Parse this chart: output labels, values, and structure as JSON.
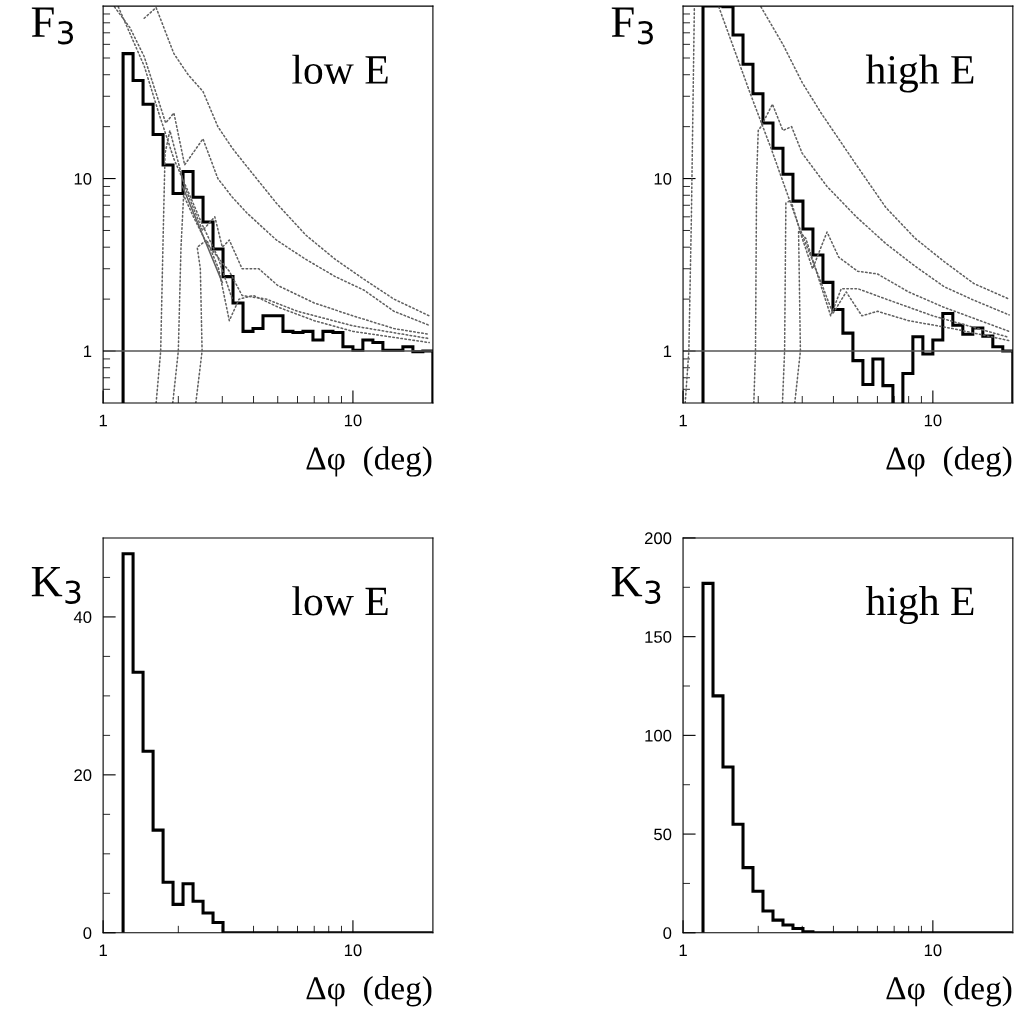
{
  "chart_data": [
    {
      "type": "histogram",
      "log": "xy",
      "color": "#000000",
      "ylabel": "F$_{3}$",
      "xlabel": "Δφ  (deg)",
      "annotations": [
        "low E"
      ],
      "xlim": [
        1,
        20.9
      ],
      "ylim": [
        0.5,
        100
      ],
      "xticks": [
        1,
        {
          "value": 2,
          "label": null
        },
        {
          "value": 3,
          "label": null
        },
        {
          "value": 4,
          "label": null
        },
        {
          "value": 5,
          "label": null
        },
        {
          "value": 6,
          "label": null
        },
        {
          "value": 7,
          "label": null
        },
        {
          "value": 8,
          "label": null
        },
        {
          "value": 9,
          "label": null
        },
        10
      ],
      "yticks": [
        {
          "value": 0.6,
          "label": null
        },
        {
          "value": 0.7,
          "label": null
        },
        {
          "value": 0.8,
          "label": null
        },
        {
          "value": 0.9,
          "label": null
        },
        1,
        {
          "value": 2,
          "label": null
        },
        {
          "value": 3,
          "label": null
        },
        {
          "value": 4,
          "label": null
        },
        {
          "value": 5,
          "label": null
        },
        {
          "value": 6,
          "label": null
        },
        {
          "value": 7,
          "label": null
        },
        {
          "value": 8,
          "label": null
        },
        {
          "value": 9,
          "label": null
        },
        10,
        {
          "value": 20,
          "label": null
        },
        {
          "value": 30,
          "label": null
        },
        {
          "value": 40,
          "label": null
        },
        {
          "value": 50,
          "label": null
        },
        {
          "value": 60,
          "label": null
        },
        {
          "value": 70,
          "label": null
        },
        {
          "value": 80,
          "label": null
        },
        {
          "value": 90,
          "label": null
        }
      ],
      "bins": [
        1.202,
        1.318,
        1.445,
        1.585,
        1.738,
        1.905,
        2.089,
        2.291,
        2.512,
        2.754,
        3.02,
        3.311,
        3.631,
        3.981,
        4.365,
        4.786,
        5.248,
        5.754,
        6.31,
        6.918,
        7.586,
        8.318,
        9.12,
        10.0,
        10.96,
        12.02,
        13.18,
        14.45,
        15.85,
        17.38,
        19.05,
        20.89
      ],
      "values": [
        53,
        37,
        27,
        18,
        12,
        8.2,
        11,
        7.8,
        5.6,
        3.9,
        2.7,
        1.9,
        1.3,
        1.35,
        1.6,
        1.6,
        1.3,
        1.28,
        1.3,
        1.16,
        1.3,
        1.28,
        1.06,
        1.01,
        1.16,
        1.12,
        1.01,
        1.01,
        1.06,
        0.99,
        1.0
      ],
      "ref_lines": [
        {
          "axis": "y",
          "value": 1,
          "color": "#555555"
        }
      ],
      "series": [
        {
          "type": "line",
          "line_style": "dotted",
          "color": "#606060",
          "x": [
            1.46,
            1.63,
            1.92,
            2.19,
            2.51,
            2.88,
            3.29,
            3.77,
            4.94,
            6.48,
            8.5,
            11.1,
            14.6,
            20.2
          ],
          "values": [
            85,
            98,
            53,
            40,
            32,
            20,
            15,
            11.7,
            7.2,
            4.7,
            3.4,
            2.6,
            2.0,
            1.6
          ]
        },
        {
          "type": "line",
          "line_style": "dotted",
          "color": "#606060",
          "x": [
            1.11,
            1.28,
            1.46,
            1.67,
            1.78,
            1.92,
            2.12,
            2.51,
            2.88,
            3.29,
            3.77,
            4.94,
            6.48,
            8.5,
            11.1,
            14.6,
            20.2
          ],
          "values": [
            99,
            75,
            51,
            28,
            21,
            24,
            12,
            17,
            10,
            7.8,
            6.3,
            4.4,
            3.4,
            2.7,
            2.25,
            1.7,
            1.41
          ]
        },
        {
          "type": "line",
          "line_style": "dotted",
          "color": "#606060",
          "x": [
            1.15,
            1.46,
            1.67,
            1.92,
            2.19,
            2.51,
            2.88,
            3.29
          ],
          "values": [
            99,
            45,
            24,
            13,
            8.4,
            5.3,
            3.5,
            2.0
          ]
        },
        {
          "type": "line",
          "line_style": "dotted",
          "color": "#606060",
          "x": [
            1.63,
            1.7,
            1.74,
            1.77,
            1.85,
            2.12,
            2.5,
            2.8,
            3.0,
            3.2,
            3.6,
            4.2,
            5,
            7,
            10,
            14.6,
            20.2
          ],
          "values": [
            0.5,
            1.0,
            4.8,
            14,
            19,
            9,
            5,
            6.0,
            4.0,
            4.4,
            3.0,
            3.0,
            2.4,
            1.9,
            1.6,
            1.35,
            1.25
          ]
        },
        {
          "type": "line",
          "line_style": "dotted",
          "color": "#606060",
          "x": [
            1.9,
            2.0,
            2.05,
            2.1,
            2.3,
            2.6,
            3.2,
            3.6,
            4.5,
            6,
            10,
            20.2
          ],
          "values": [
            0.5,
            1.0,
            4,
            8,
            6,
            4.2,
            2.9,
            2.1,
            2.0,
            1.7,
            1.4,
            1.18
          ]
        },
        {
          "type": "line",
          "line_style": "dotted",
          "color": "#606060",
          "x": [
            2.35,
            2.49,
            2.45,
            2.38,
            2.6,
            2.9,
            3.2,
            3.5,
            4.0,
            5.0,
            7,
            10,
            20.2
          ],
          "values": [
            0.5,
            1.0,
            3.0,
            4.0,
            4.4,
            3.0,
            1.5,
            2.0,
            2.1,
            1.8,
            1.5,
            1.3,
            1.12
          ]
        },
        {
          "type": "line",
          "line_style": "solid",
          "color": "#606060",
          "x": [
            2.08,
            3.0
          ],
          "values": [
            9.0,
            2.5
          ]
        }
      ]
    },
    {
      "type": "histogram",
      "log": "xy",
      "color": "#000000",
      "ylabel": "F$_{3}$",
      "xlabel": "Δφ  (deg)",
      "annotations": [
        "high E"
      ],
      "xlim": [
        1,
        20.9
      ],
      "ylim": [
        0.5,
        100
      ],
      "xticks": [
        1,
        {
          "value": 2,
          "label": null
        },
        {
          "value": 3,
          "label": null
        },
        {
          "value": 4,
          "label": null
        },
        {
          "value": 5,
          "label": null
        },
        {
          "value": 6,
          "label": null
        },
        {
          "value": 7,
          "label": null
        },
        {
          "value": 8,
          "label": null
        },
        {
          "value": 9,
          "label": null
        },
        10
      ],
      "yticks": [
        {
          "value": 0.6,
          "label": null
        },
        {
          "value": 0.7,
          "label": null
        },
        {
          "value": 0.8,
          "label": null
        },
        {
          "value": 0.9,
          "label": null
        },
        1,
        {
          "value": 2,
          "label": null
        },
        {
          "value": 3,
          "label": null
        },
        {
          "value": 4,
          "label": null
        },
        {
          "value": 5,
          "label": null
        },
        {
          "value": 6,
          "label": null
        },
        {
          "value": 7,
          "label": null
        },
        {
          "value": 8,
          "label": null
        },
        {
          "value": 9,
          "label": null
        },
        10,
        {
          "value": 20,
          "label": null
        },
        {
          "value": 30,
          "label": null
        },
        {
          "value": 40,
          "label": null
        },
        {
          "value": 50,
          "label": null
        },
        {
          "value": 60,
          "label": null
        },
        {
          "value": 70,
          "label": null
        },
        {
          "value": 80,
          "label": null
        },
        {
          "value": 90,
          "label": null
        }
      ],
      "bins": [
        1.202,
        1.318,
        1.445,
        1.585,
        1.738,
        1.905,
        2.089,
        2.291,
        2.512,
        2.754,
        3.02,
        3.311,
        3.631,
        3.981,
        4.365,
        4.786,
        5.248,
        5.754,
        6.31,
        6.918,
        7.586,
        8.318,
        9.12,
        10.0,
        10.96,
        12.02,
        13.18,
        14.45,
        15.85,
        17.38,
        19.05,
        20.89
      ],
      "values": [
        100,
        100,
        99,
        68,
        46,
        31,
        21,
        15,
        10.6,
        7.4,
        5.1,
        3.6,
        2.5,
        1.74,
        1.27,
        0.88,
        0.64,
        0.9,
        0.63,
        null,
        0.74,
        1.21,
        0.96,
        1.16,
        1.65,
        1.41,
        1.25,
        1.36,
        1.22,
        1.06,
        1.0
      ],
      "ref_lines": [
        {
          "axis": "y",
          "value": 1,
          "color": "#555555"
        }
      ],
      "series": [
        {
          "type": "line",
          "line_style": "dotted",
          "color": "#606060",
          "x": [
            1.02,
            1.055,
            1.08,
            1.11
          ],
          "values": [
            0.5,
            1.0,
            6,
            99
          ]
        },
        {
          "type": "line",
          "line_style": "dotted",
          "color": "#606060",
          "x": [
            2.05,
            2.51,
            3.0,
            3.57,
            4.94,
            6.48,
            8.5,
            11.1,
            14.6,
            20.2
          ],
          "values": [
            99,
            60,
            36,
            24,
            12,
            6.8,
            4.5,
            3.3,
            2.46,
            2.0
          ]
        },
        {
          "type": "line",
          "line_style": "dotted",
          "color": "#606060",
          "x": [
            1.92,
            1.95,
            1.97,
            2.0,
            2.05,
            2.28,
            2.51,
            2.72,
            3.0,
            3.77,
            4.94,
            6.48,
            8.5,
            11.1,
            14.6,
            20.2
          ],
          "values": [
            0.5,
            1.0,
            10,
            19,
            20,
            27,
            19,
            20,
            14,
            9,
            6,
            4.2,
            3.1,
            2.36,
            1.97,
            1.62
          ]
        },
        {
          "type": "line",
          "line_style": "dotted",
          "color": "#606060",
          "x": [
            1.39,
            1.86,
            2.25,
            2.88,
            3.57,
            3.98,
            4.5,
            5.2,
            6,
            8,
            12,
            20.2
          ],
          "values": [
            99,
            31,
            15,
            5.5,
            2.5,
            1.65,
            2.2,
            1.6,
            1.7,
            1.5,
            1.35,
            1.15
          ]
        },
        {
          "type": "line",
          "line_style": "dotted",
          "color": "#606060",
          "x": [
            2.5,
            2.55,
            2.58,
            2.7,
            3.0,
            3.3,
            3.77,
            4.2,
            5,
            6,
            8,
            11,
            20.2
          ],
          "values": [
            0.5,
            1.0,
            7.2,
            7.5,
            4.5,
            3.0,
            4.9,
            3.5,
            2.9,
            2.8,
            2.2,
            1.8,
            1.3
          ]
        },
        {
          "type": "line",
          "line_style": "dotted",
          "color": "#606060",
          "x": [
            2.8,
            2.95,
            2.9,
            3.1,
            3.5,
            3.9,
            4.3,
            5,
            6.5,
            10,
            20.2
          ],
          "values": [
            0.5,
            1.0,
            5,
            4.5,
            2.6,
            1.6,
            2.3,
            2.3,
            2.0,
            1.6,
            1.2
          ]
        }
      ]
    },
    {
      "type": "histogram",
      "color": "#000000",
      "ylabel": "K$_{3}$",
      "xlabel": "Δφ  (deg)",
      "annotations": [
        "low E"
      ],
      "log": "x",
      "xlim": [
        1,
        20.9
      ],
      "ylim": [
        0,
        50
      ],
      "xticks": [
        1,
        {
          "value": 2,
          "label": null
        },
        {
          "value": 3,
          "label": null
        },
        {
          "value": 4,
          "label": null
        },
        {
          "value": 5,
          "label": null
        },
        {
          "value": 6,
          "label": null
        },
        {
          "value": 7,
          "label": null
        },
        {
          "value": 8,
          "label": null
        },
        {
          "value": 9,
          "label": null
        },
        10
      ],
      "yticks": [
        0,
        {
          "value": 5,
          "label": null
        },
        {
          "value": 10,
          "label": null
        },
        {
          "value": 15,
          "label": null
        },
        20,
        {
          "value": 25,
          "label": null
        },
        {
          "value": 30,
          "label": null
        },
        {
          "value": 35,
          "label": null
        },
        40,
        {
          "value": 45,
          "label": null
        }
      ],
      "bins": [
        1.202,
        1.318,
        1.445,
        1.585,
        1.738,
        1.905,
        2.089,
        2.291,
        2.512,
        2.754,
        3.02,
        3.311,
        3.631,
        3.981,
        4.365,
        4.786,
        5.248,
        5.754,
        6.31,
        6.918,
        7.586,
        8.318,
        9.12,
        10.0,
        10.96,
        12.02,
        13.18,
        14.45,
        15.85,
        17.38,
        19.05,
        20.89
      ],
      "values": [
        48,
        33,
        23,
        13,
        6.4,
        3.6,
        6.2,
        4.0,
        2.5,
        1.3,
        0,
        0,
        0,
        0,
        0,
        0,
        0,
        0,
        0,
        0,
        0,
        0,
        0,
        0,
        0,
        0,
        0,
        0,
        0,
        0,
        0
      ]
    },
    {
      "type": "histogram",
      "color": "#000000",
      "ylabel": "K$_{3}$",
      "xlabel": "Δφ  (deg)",
      "annotations": [
        "high E"
      ],
      "log": "x",
      "xlim": [
        1,
        20.9
      ],
      "ylim": [
        0,
        200
      ],
      "xticks": [
        1,
        {
          "value": 2,
          "label": null
        },
        {
          "value": 3,
          "label": null
        },
        {
          "value": 4,
          "label": null
        },
        {
          "value": 5,
          "label": null
        },
        {
          "value": 6,
          "label": null
        },
        {
          "value": 7,
          "label": null
        },
        {
          "value": 8,
          "label": null
        },
        {
          "value": 9,
          "label": null
        },
        10
      ],
      "yticks": [
        0,
        {
          "value": 25,
          "label": null
        },
        50,
        {
          "value": 75,
          "label": null
        },
        100,
        {
          "value": 125,
          "label": null
        },
        150,
        {
          "value": 175,
          "label": null
        },
        200
      ],
      "bins": [
        1.202,
        1.318,
        1.445,
        1.585,
        1.738,
        1.905,
        2.089,
        2.291,
        2.512,
        2.754,
        3.02,
        3.311,
        3.631,
        3.981,
        4.365,
        4.786,
        5.248,
        5.754,
        6.31,
        6.918,
        7.586,
        8.318,
        9.12,
        10.0,
        10.96,
        12.02,
        13.18,
        14.45,
        15.85,
        17.38,
        19.05,
        20.89
      ],
      "values": [
        177,
        120,
        84,
        55,
        33,
        21,
        11,
        6.4,
        3.9,
        2.2,
        0.5,
        0,
        0,
        0,
        0,
        0,
        0,
        0,
        0,
        0,
        0,
        0,
        0,
        0,
        0,
        0,
        0,
        0,
        0,
        0,
        0
      ]
    }
  ]
}
